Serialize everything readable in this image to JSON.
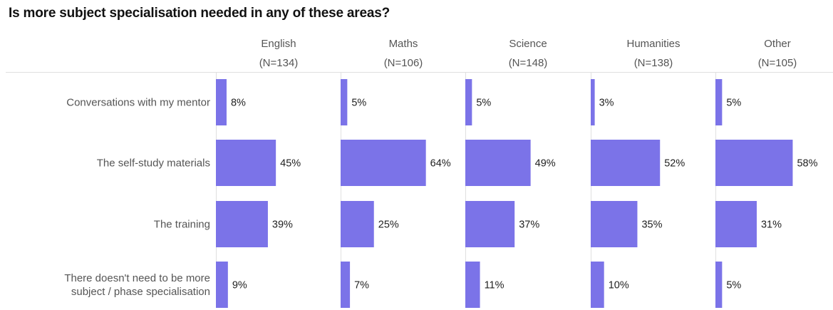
{
  "title": "Is more subject specialisation needed in any of these areas?",
  "chart_data": {
    "type": "bar",
    "orientation": "horizontal",
    "layout": "small-multiples",
    "title": "Is more subject specialisation needed in any of these areas?",
    "categories": [
      "Conversations with my mentor",
      "The self-study materials",
      "The training",
      "There doesn't need to be more subject / phase specialisation"
    ],
    "category_lines": [
      [
        "Conversations with my mentor"
      ],
      [
        "The self-study materials"
      ],
      [
        "The training"
      ],
      [
        "There doesn't need to be more",
        "subject / phase specialisation"
      ]
    ],
    "series": [
      {
        "name": "English",
        "n_label": "(N=134)",
        "values": [
          8,
          45,
          39,
          9
        ],
        "labels": [
          "8%",
          "45%",
          "39%",
          "9%"
        ]
      },
      {
        "name": "Maths",
        "n_label": "(N=106)",
        "values": [
          5,
          64,
          25,
          7
        ],
        "labels": [
          "5%",
          "64%",
          "25%",
          "7%"
        ]
      },
      {
        "name": "Science",
        "n_label": "(N=148)",
        "values": [
          5,
          49,
          37,
          11
        ],
        "labels": [
          "5%",
          "49%",
          "37%",
          "11%"
        ]
      },
      {
        "name": "Humanities",
        "n_label": "(N=138)",
        "values": [
          3,
          52,
          35,
          10
        ],
        "labels": [
          "3%",
          "52%",
          "35%",
          "10%"
        ]
      },
      {
        "name": "Other",
        "n_label": "(N=105)",
        "values": [
          5,
          58,
          31,
          5
        ],
        "labels": [
          "5%",
          "58%",
          "31%",
          "5%"
        ]
      }
    ],
    "unit": "%",
    "xlim": [
      0,
      100
    ],
    "grid": false,
    "colors": {
      "bar": "#7b73e8"
    }
  }
}
